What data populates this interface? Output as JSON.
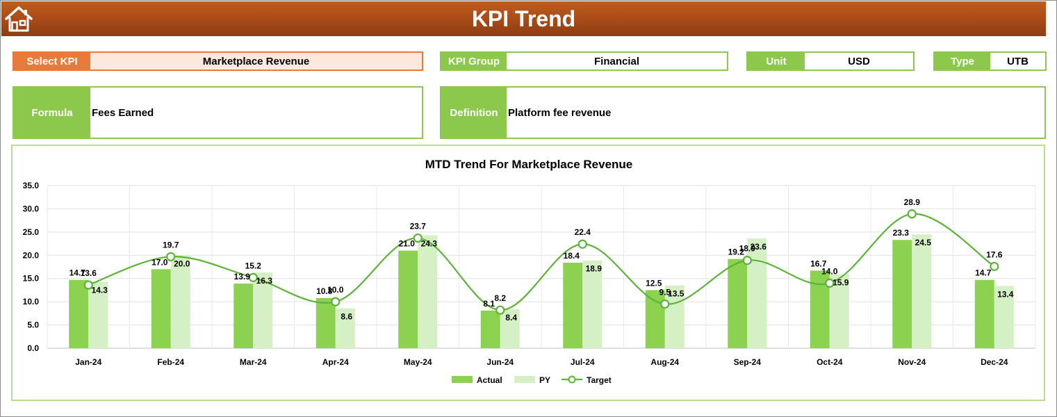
{
  "header": {
    "title": "KPI Trend",
    "home_icon": "home-icon"
  },
  "selectors": {
    "select_kpi": {
      "label": "Select KPI",
      "value": "Marketplace Revenue"
    },
    "kpi_group": {
      "label": "KPI Group",
      "value": "Financial"
    },
    "unit": {
      "label": "Unit",
      "value": "USD"
    },
    "type": {
      "label": "Type",
      "value": "UTB"
    }
  },
  "details": {
    "formula": {
      "label": "Formula",
      "value": "Fees Earned"
    },
    "definition": {
      "label": "Definition",
      "value": "Platform fee revenue"
    }
  },
  "colors": {
    "header": "#a64a18",
    "accent_orange": "#e97b3a",
    "accent_green": "#8cc84b",
    "actual": "#8cd150",
    "py": "#d6f0c6",
    "target": "#5bb338"
  },
  "chart_data": {
    "type": "bar",
    "title": "MTD Trend For Marketplace Revenue",
    "categories": [
      "Jan-24",
      "Feb-24",
      "Mar-24",
      "Apr-24",
      "May-24",
      "Jun-24",
      "Jul-24",
      "Aug-24",
      "Sep-24",
      "Oct-24",
      "Nov-24",
      "Dec-24"
    ],
    "ylim": [
      0,
      35
    ],
    "yticks": [
      "0.0",
      "5.0",
      "10.0",
      "15.0",
      "20.0",
      "25.0",
      "30.0",
      "35.0"
    ],
    "grid": true,
    "legend_position": "bottom",
    "series": [
      {
        "name": "Actual",
        "kind": "bar",
        "values": [
          14.7,
          17.0,
          13.9,
          10.8,
          21.0,
          8.1,
          18.4,
          12.5,
          19.2,
          16.7,
          23.3,
          14.7
        ]
      },
      {
        "name": "PY",
        "kind": "bar",
        "values": [
          14.3,
          20.0,
          16.3,
          8.6,
          24.3,
          8.4,
          18.9,
          13.5,
          23.6,
          15.9,
          24.5,
          13.4
        ]
      },
      {
        "name": "Target",
        "kind": "line",
        "values": [
          13.6,
          19.7,
          15.2,
          10.0,
          23.7,
          8.2,
          22.4,
          9.5,
          18.9,
          14.0,
          28.9,
          17.6
        ]
      }
    ]
  }
}
